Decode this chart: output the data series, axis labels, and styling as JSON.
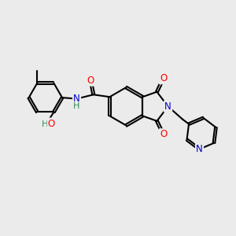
{
  "bg_color": "#ebebeb",
  "bond_color": "#000000",
  "bond_width": 1.5,
  "atom_colors": {
    "O": "#ff0000",
    "N": "#0000cc",
    "C": "#000000",
    "OH": "#2e8b57"
  },
  "font_size": 8.5,
  "dbo": 0.055
}
